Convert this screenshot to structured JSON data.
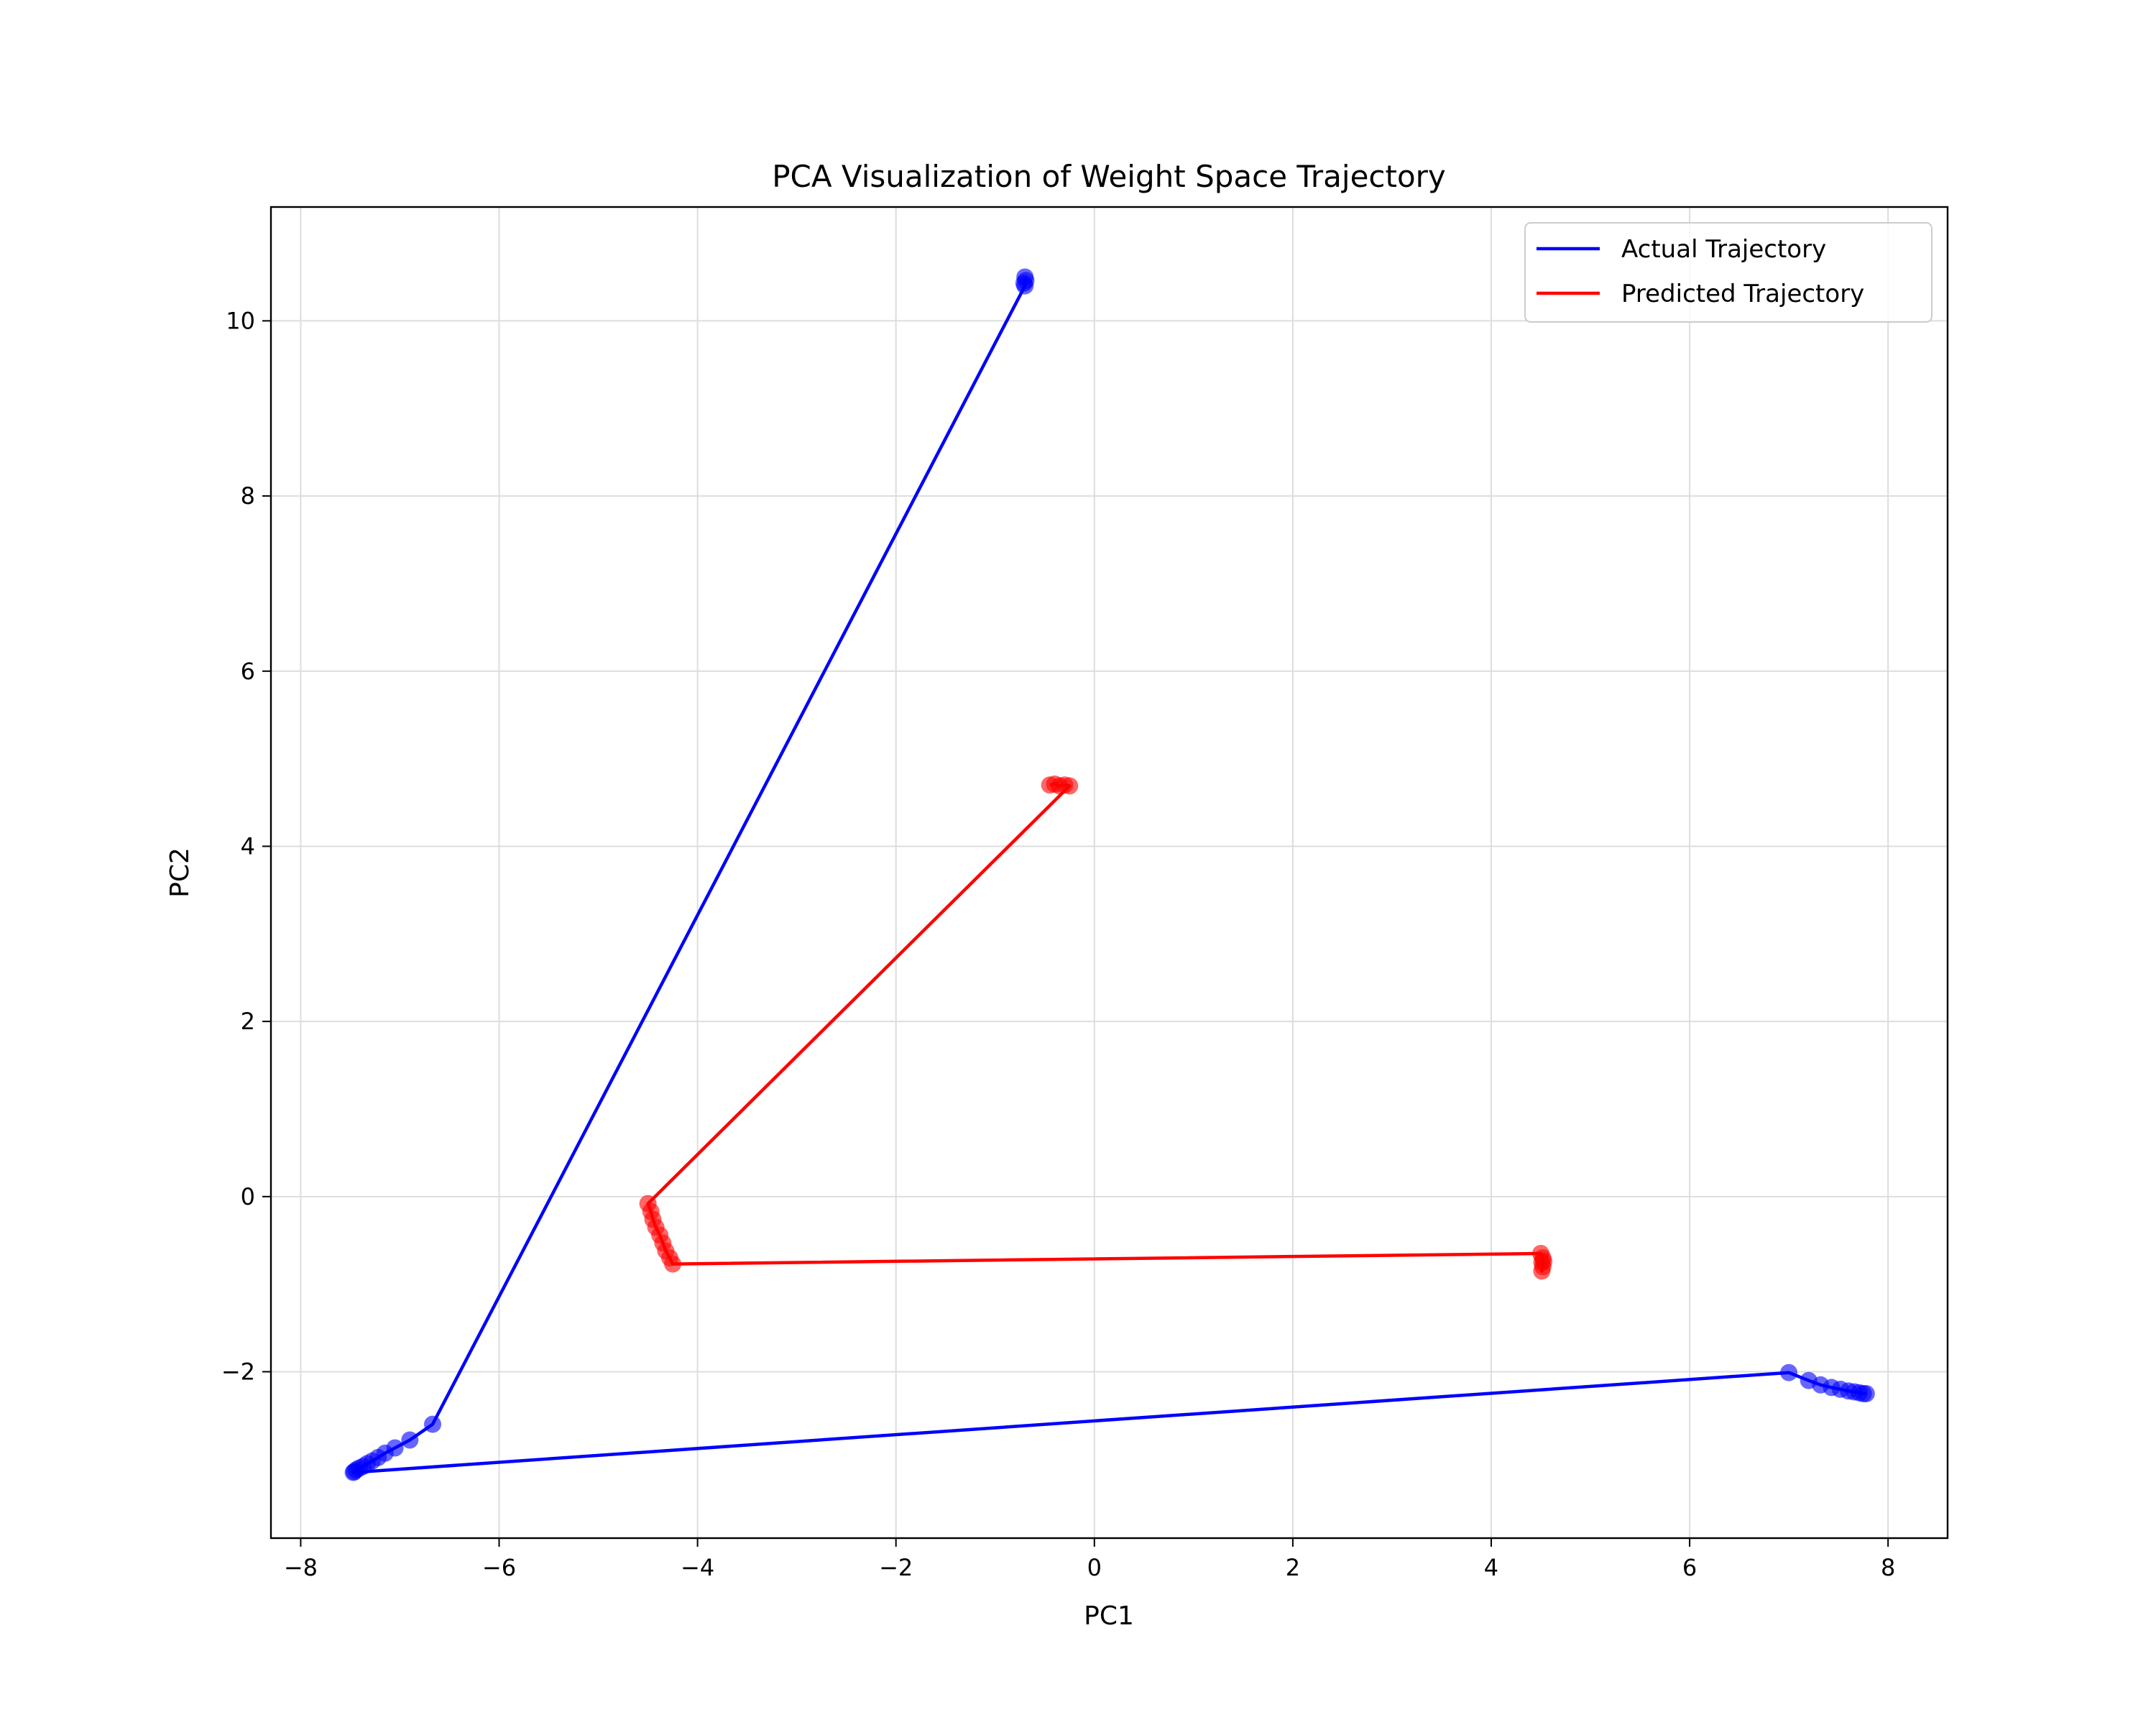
{
  "chart_data": {
    "type": "scatter",
    "title": "PCA Visualization of Weight Space Trajectory",
    "xlabel": "PC1",
    "ylabel": "PC2",
    "xlim": [
      -8.3,
      8.6
    ],
    "ylim": [
      -3.9,
      11.3
    ],
    "x_ticks": [
      -8,
      -6,
      -4,
      -2,
      0,
      2,
      4,
      6,
      8
    ],
    "y_ticks": [
      -2,
      0,
      2,
      4,
      6,
      8,
      10
    ],
    "x_tick_labels": [
      "−8",
      "−6",
      "−4",
      "−2",
      "0",
      "2",
      "4",
      "6",
      "8"
    ],
    "y_tick_labels": [
      "−2",
      "0",
      "2",
      "4",
      "6",
      "8",
      "10"
    ],
    "grid": true,
    "legend_position": "top-right",
    "series": [
      {
        "name": "Actual Trajectory",
        "color": "#0000ff",
        "points": [
          [
            -0.7,
            10.5
          ],
          [
            -0.69,
            10.46
          ],
          [
            -0.71,
            10.43
          ],
          [
            -0.7,
            10.4
          ],
          [
            -6.67,
            -2.6
          ],
          [
            -6.9,
            -2.78
          ],
          [
            -7.05,
            -2.87
          ],
          [
            -7.15,
            -2.93
          ],
          [
            -7.22,
            -2.98
          ],
          [
            -7.28,
            -3.02
          ],
          [
            -7.33,
            -3.05
          ],
          [
            -7.37,
            -3.08
          ],
          [
            -7.41,
            -3.1
          ],
          [
            -7.44,
            -3.12
          ],
          [
            -7.46,
            -3.14
          ],
          [
            -7.47,
            -3.15
          ],
          [
            7.0,
            -2.01
          ],
          [
            7.2,
            -2.1
          ],
          [
            7.32,
            -2.15
          ],
          [
            7.43,
            -2.18
          ],
          [
            7.52,
            -2.2
          ],
          [
            7.6,
            -2.22
          ],
          [
            7.66,
            -2.23
          ],
          [
            7.71,
            -2.24
          ],
          [
            7.75,
            -2.25
          ],
          [
            7.78,
            -2.25
          ]
        ]
      },
      {
        "name": "Predicted Trajectory",
        "color": "#ff0000",
        "points": [
          [
            -0.45,
            4.7
          ],
          [
            -0.4,
            4.71
          ],
          [
            -0.35,
            4.69
          ],
          [
            -0.3,
            4.7
          ],
          [
            -0.25,
            4.69
          ],
          [
            -4.5,
            -0.08
          ],
          [
            -4.47,
            -0.17
          ],
          [
            -4.45,
            -0.26
          ],
          [
            -4.42,
            -0.35
          ],
          [
            -4.38,
            -0.44
          ],
          [
            -4.35,
            -0.53
          ],
          [
            -4.32,
            -0.62
          ],
          [
            -4.28,
            -0.7
          ],
          [
            -4.25,
            -0.77
          ],
          [
            4.5,
            -0.65
          ],
          [
            4.52,
            -0.7
          ],
          [
            4.51,
            -0.75
          ],
          [
            4.52,
            -0.8
          ],
          [
            4.51,
            -0.85
          ],
          [
            4.53,
            -0.74
          ]
        ]
      }
    ]
  }
}
